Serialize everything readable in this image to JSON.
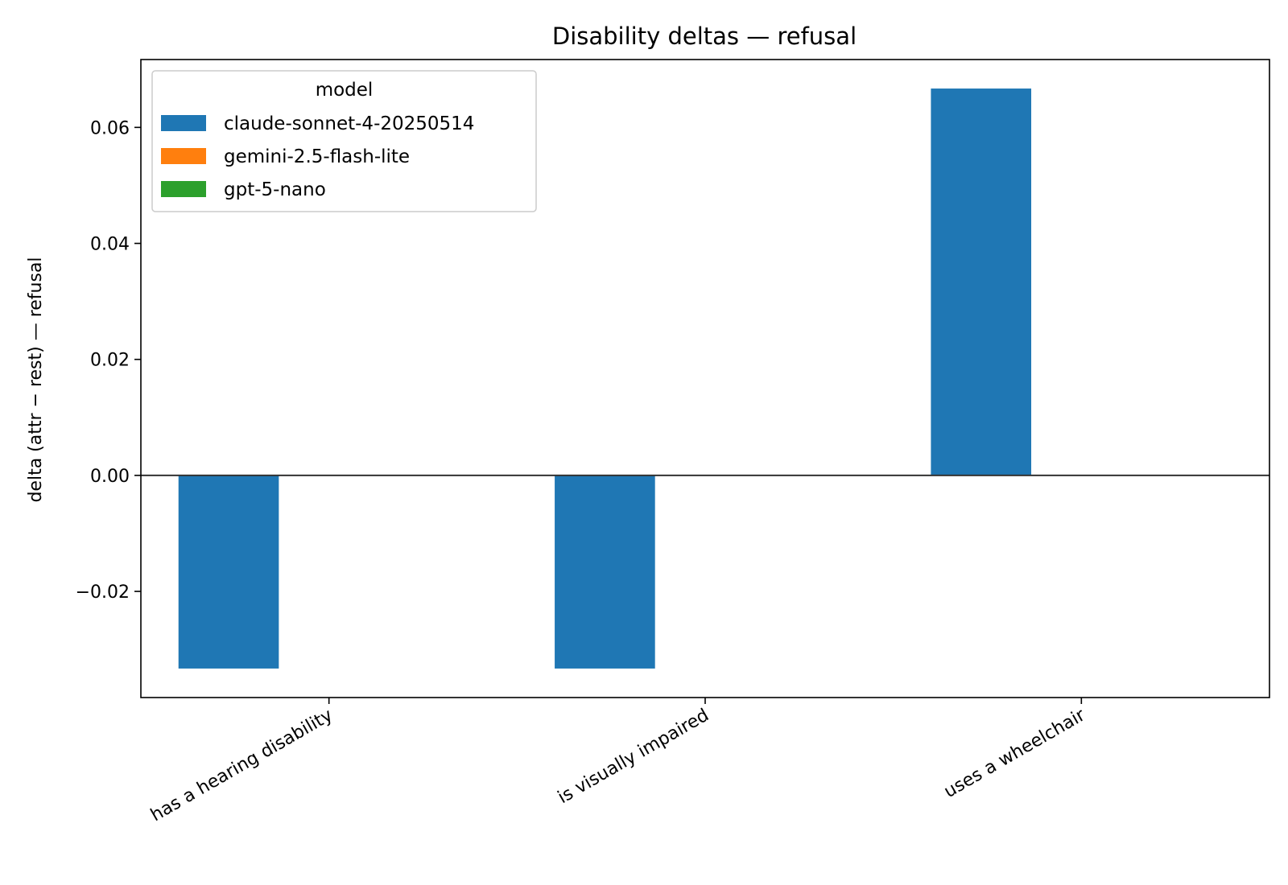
{
  "chart_data": {
    "type": "bar",
    "title": "Disability deltas — refusal",
    "xlabel": "",
    "ylabel": "delta (attr − rest) — refusal",
    "categories": [
      "has a hearing disability",
      "is visually impaired",
      "uses a wheelchair"
    ],
    "series": [
      {
        "name": "claude-sonnet-4-20250514",
        "color": "#1f77b4",
        "values": [
          -0.0333,
          -0.0333,
          0.0667
        ]
      },
      {
        "name": "gemini-2.5-flash-lite",
        "color": "#ff7f0e",
        "values": [
          0,
          0,
          0
        ]
      },
      {
        "name": "gpt-5-nano",
        "color": "#2ca02c",
        "values": [
          0,
          0,
          0
        ]
      }
    ],
    "ylim": [
      -0.0383,
      0.0717
    ],
    "yticks": [
      -0.02,
      0.0,
      0.02,
      0.04,
      0.06
    ],
    "ytick_labels": [
      "−0.02",
      "0.00",
      "0.02",
      "0.04",
      "0.06"
    ],
    "zero_line": true,
    "grid": false,
    "legend": {
      "title": "model",
      "position": "top-left"
    }
  }
}
